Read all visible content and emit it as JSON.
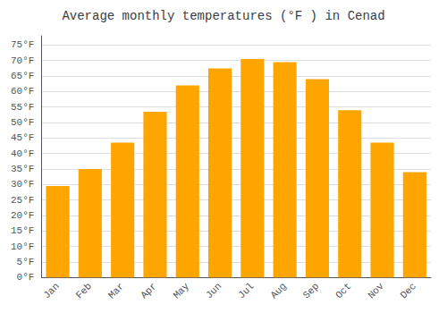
{
  "chart_data": {
    "type": "bar",
    "title": "Average monthly temperatures (°F ) in Cenad",
    "categories": [
      "Jan",
      "Feb",
      "Mar",
      "Apr",
      "May",
      "Jun",
      "Jul",
      "Aug",
      "Sep",
      "Oct",
      "Nov",
      "Dec"
    ],
    "values": [
      29.5,
      35.0,
      43.5,
      53.5,
      62.0,
      67.5,
      70.5,
      69.5,
      64.0,
      54.0,
      43.5,
      34.0
    ],
    "color": "#FFA500",
    "ylim": [
      0,
      78
    ],
    "yticks": [
      {
        "value": 0,
        "label": "0°F"
      },
      {
        "value": 5,
        "label": "5°F"
      },
      {
        "value": 10,
        "label": "10°F"
      },
      {
        "value": 15,
        "label": "15°F"
      },
      {
        "value": 20,
        "label": "20°F"
      },
      {
        "value": 25,
        "label": "25°F"
      },
      {
        "value": 30,
        "label": "30°F"
      },
      {
        "value": 35,
        "label": "35°F"
      },
      {
        "value": 40,
        "label": "40°F"
      },
      {
        "value": 45,
        "label": "45°F"
      },
      {
        "value": 50,
        "label": "50°F"
      },
      {
        "value": 55,
        "label": "55°F"
      },
      {
        "value": 60,
        "label": "60°F"
      },
      {
        "value": 65,
        "label": "65°F"
      },
      {
        "value": 70,
        "label": "70°F"
      },
      {
        "value": 75,
        "label": "75°F"
      }
    ],
    "grid": true
  }
}
